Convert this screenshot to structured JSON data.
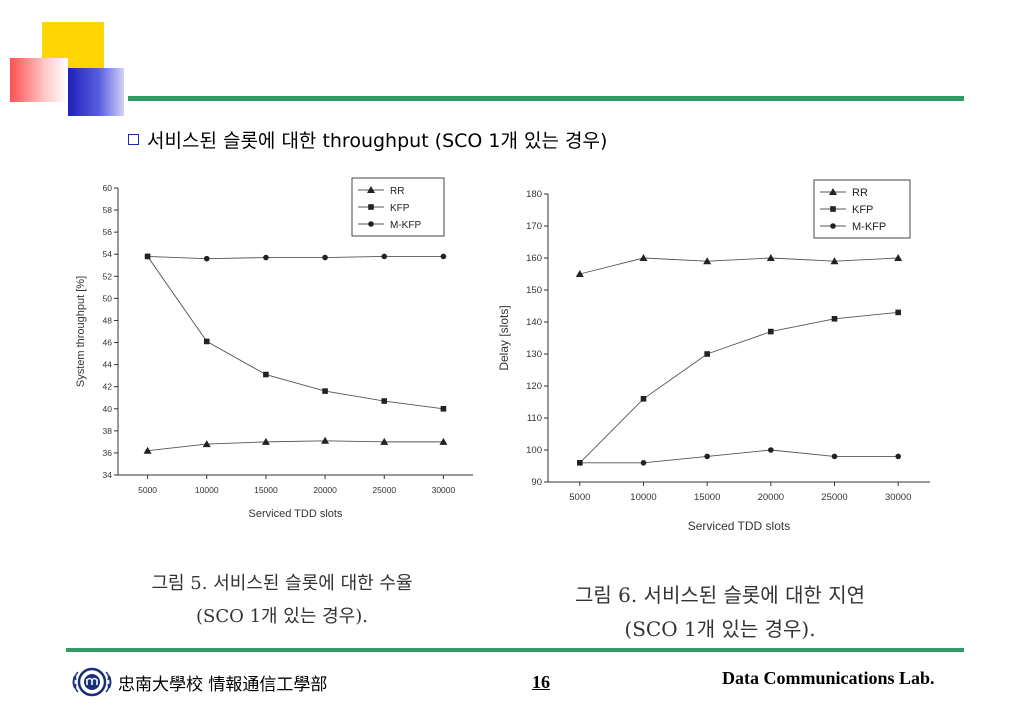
{
  "slide": {
    "heading": "서비스된 슬롯에 대한 throughput (SCO 1개 있는 경우)",
    "caption_left_line1": "그림 5. 서비스된 슬롯에 대한 수율",
    "caption_left_line2": "(SCO 1개 있는 경우).",
    "caption_right_line1": "그림 6. 서비스된 슬롯에 대한 지연",
    "caption_right_line2": "(SCO 1개 있는 경우).",
    "footer_dept": "忠南大學校 情報通信工學部",
    "page_number": "16",
    "footer_lab": "Data Communications Lab."
  },
  "chart_data": [
    {
      "type": "line",
      "xlabel": "Serviced TDD slots",
      "ylabel": "System throughput [%]",
      "x": [
        5000,
        10000,
        15000,
        20000,
        25000,
        30000
      ],
      "xticks": [
        5000,
        10000,
        15000,
        20000,
        25000,
        30000
      ],
      "xlim": [
        2500,
        32500
      ],
      "ylim": [
        34,
        60
      ],
      "yticks": [
        34,
        36,
        38,
        40,
        42,
        44,
        46,
        48,
        50,
        52,
        54,
        56,
        58,
        60
      ],
      "legend_position": "top-right",
      "series": [
        {
          "name": "RR",
          "marker": "triangle",
          "values": [
            36.2,
            36.8,
            37.0,
            37.1,
            37.0,
            37.0
          ]
        },
        {
          "name": "KFP",
          "marker": "square",
          "values": [
            53.8,
            46.1,
            43.1,
            41.6,
            40.7,
            40.0
          ]
        },
        {
          "name": "M-KFP",
          "marker": "circle",
          "values": [
            53.8,
            53.6,
            53.7,
            53.7,
            53.8,
            53.8
          ]
        }
      ]
    },
    {
      "type": "line",
      "xlabel": "Serviced TDD slots",
      "ylabel": "Delay [slots]",
      "x": [
        5000,
        10000,
        15000,
        20000,
        25000,
        30000
      ],
      "xticks": [
        5000,
        10000,
        15000,
        20000,
        25000,
        30000
      ],
      "xlim": [
        2500,
        32500
      ],
      "ylim": [
        90,
        180
      ],
      "yticks": [
        90,
        100,
        110,
        120,
        130,
        140,
        150,
        160,
        170,
        180
      ],
      "legend_position": "top-right",
      "series": [
        {
          "name": "RR",
          "marker": "triangle",
          "values": [
            155,
            160,
            159,
            160,
            159,
            160
          ]
        },
        {
          "name": "KFP",
          "marker": "square",
          "values": [
            96,
            116,
            130,
            137,
            141,
            143
          ]
        },
        {
          "name": "M-KFP",
          "marker": "circle",
          "values": [
            96,
            96,
            98,
            100,
            98,
            98
          ]
        }
      ]
    }
  ]
}
